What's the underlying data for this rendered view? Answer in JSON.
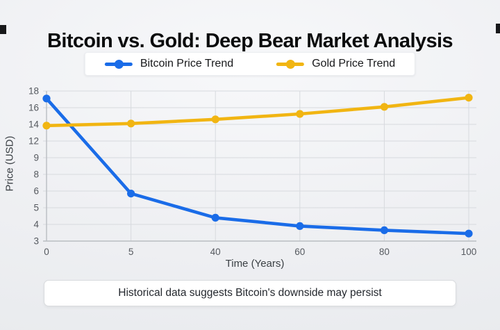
{
  "title": "Bitcoin vs. Gold: Deep Bear Market Analysis",
  "caption": "Historical data suggests Bitcoin's downside may persist",
  "colors": {
    "bitcoin": "#1a6ce8",
    "gold": "#f1b512",
    "gridline": "#d7dade",
    "axis": "#b9bdc2",
    "tick_text": "#55595f"
  },
  "chart_data": {
    "type": "line",
    "x": [
      0,
      5,
      40,
      60,
      80,
      100
    ],
    "x_tick_labels": [
      "0",
      "5",
      "40",
      "60",
      "80",
      "100"
    ],
    "y_ticks": [
      3,
      4,
      5,
      6,
      8,
      9,
      12,
      14,
      16,
      18
    ],
    "y_tick_labels": [
      "3",
      "4",
      "5",
      "6",
      "8",
      "9",
      "12",
      "14",
      "16",
      "18"
    ],
    "series": [
      {
        "name": "Bitcoin Price Trend",
        "color": "#1a6ce8",
        "values": [
          17.1,
          5.85,
          4.4,
          3.9,
          3.65,
          3.45
        ]
      },
      {
        "name": "Gold Price Trend",
        "color": "#f1b512",
        "values": [
          13.85,
          14.1,
          14.6,
          15.25,
          16.1,
          17.2
        ]
      }
    ],
    "xlabel": "Time (Years)",
    "ylabel": "Price (USD)",
    "grid": true,
    "legend_position": "top"
  }
}
